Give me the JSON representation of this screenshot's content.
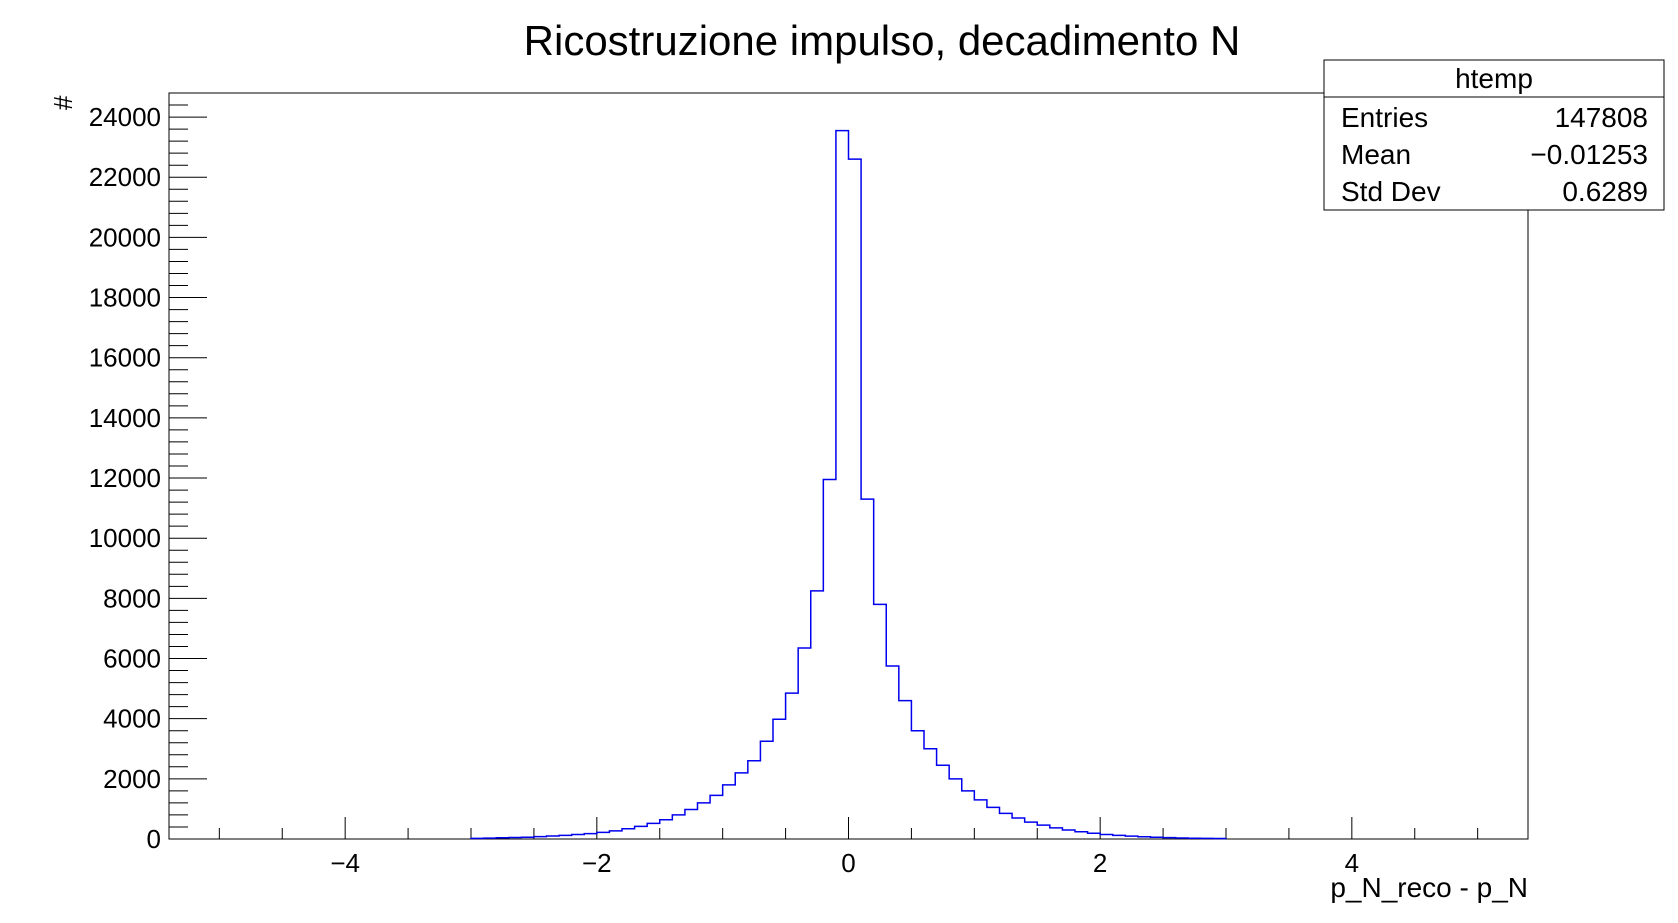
{
  "chart_data": {
    "type": "bar",
    "title": "Ricostruzione impulso, decadimento N",
    "xlabel": "p_N_reco - p_N",
    "ylabel": "#",
    "xlim": [
      -5.4,
      5.4
    ],
    "ylim": [
      0,
      24800
    ],
    "x_ticks": [
      -4,
      -2,
      0,
      2,
      4
    ],
    "x_tick_labels": [
      "−4",
      "−2",
      "0",
      "2",
      "4"
    ],
    "y_ticks": [
      0,
      2000,
      4000,
      6000,
      8000,
      10000,
      12000,
      14000,
      16000,
      18000,
      20000,
      22000,
      24000
    ],
    "y_tick_labels": [
      "0",
      "2000",
      "4000",
      "6000",
      "8000",
      "10000",
      "12000",
      "14000",
      "16000",
      "18000",
      "20000",
      "22000",
      "24000"
    ],
    "bin_width": 0.1,
    "bin_centers": [
      -2.95,
      -2.85,
      -2.75,
      -2.65,
      -2.55,
      -2.45,
      -2.35,
      -2.25,
      -2.15,
      -2.05,
      -1.95,
      -1.85,
      -1.75,
      -1.65,
      -1.55,
      -1.45,
      -1.35,
      -1.25,
      -1.15,
      -1.05,
      -0.95,
      -0.85,
      -0.75,
      -0.65,
      -0.55,
      -0.45,
      -0.35,
      -0.25,
      -0.15,
      -0.05,
      0.05,
      0.15,
      0.25,
      0.35,
      0.45,
      0.55,
      0.65,
      0.75,
      0.85,
      0.95,
      1.05,
      1.15,
      1.25,
      1.35,
      1.45,
      1.55,
      1.65,
      1.75,
      1.85,
      1.95,
      2.05,
      2.15,
      2.25,
      2.35,
      2.45,
      2.55,
      2.65,
      2.75,
      2.85,
      2.95
    ],
    "values": [
      20,
      30,
      40,
      50,
      60,
      80,
      100,
      120,
      150,
      180,
      220,
      270,
      340,
      420,
      520,
      640,
      800,
      980,
      1200,
      1450,
      1800,
      2200,
      2600,
      3250,
      3980,
      4850,
      6350,
      8250,
      11950,
      23550,
      22600,
      11300,
      7800,
      5750,
      4600,
      3600,
      3000,
      2450,
      2000,
      1600,
      1300,
      1050,
      850,
      700,
      560,
      460,
      370,
      300,
      240,
      190,
      150,
      120,
      95,
      75,
      60,
      45,
      35,
      25,
      20,
      15
    ],
    "line_color": "#0000ee",
    "grid": false,
    "stats_box": {
      "name": "htemp",
      "rows": [
        {
          "label": "Entries",
          "value": "147808"
        },
        {
          "label": "Mean",
          "value": "−0.01253"
        },
        {
          "label": "Std Dev",
          "value": "0.6289"
        }
      ]
    }
  }
}
